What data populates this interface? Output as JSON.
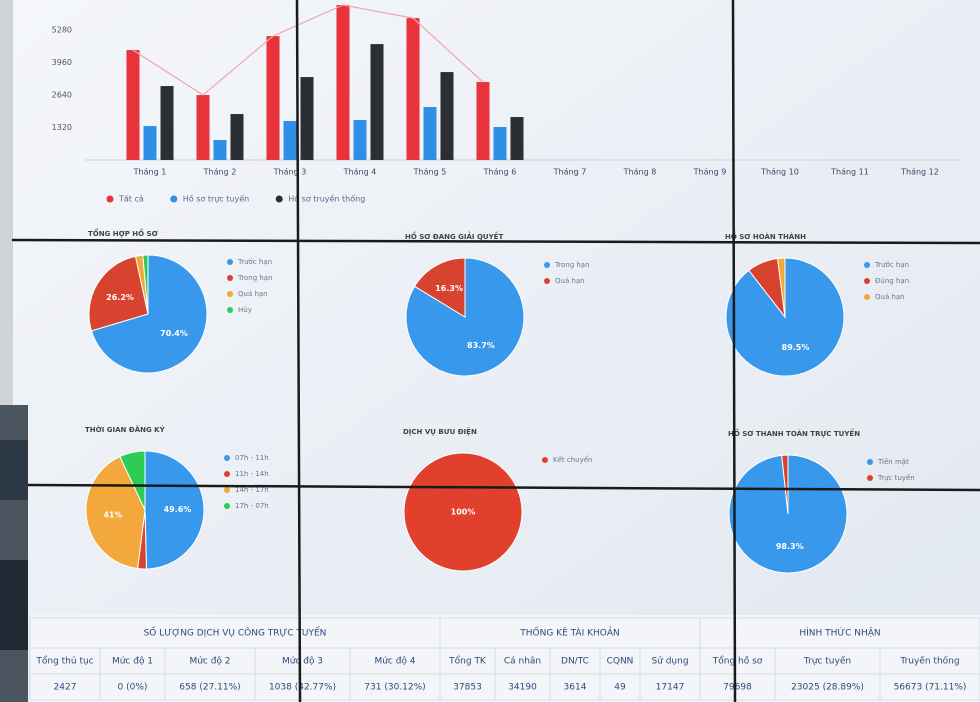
{
  "chart_data": [
    {
      "type": "bar",
      "categories": [
        "Tháng 1",
        "Tháng 2",
        "Tháng 3",
        "Tháng 4",
        "Tháng 5",
        "Tháng 6",
        "Tháng 7",
        "Tháng 8",
        "Tháng 9",
        "Tháng 10",
        "Tháng 11",
        "Tháng 12"
      ],
      "series": [
        {
          "name": "Tất cả",
          "color": "#e8323c",
          "values": [
            4468,
            2640,
            5036,
            6300,
            5767,
            3168,
            null,
            null,
            null,
            null,
            null,
            null
          ],
          "line_color": "#f3a3ad"
        },
        {
          "name": "Hồ sơ trực tuyến",
          "color": "#2f8fe6",
          "values": [
            1380,
            812,
            1584,
            1625,
            2153,
            1340,
            null,
            null,
            null,
            null,
            null,
            null
          ]
        },
        {
          "name": "Hồ sơ truyền thống",
          "color": "#2b2e35",
          "values": [
            3005,
            1868,
            3371,
            4711,
            3574,
            1746,
            null,
            null,
            null,
            null,
            null,
            null
          ]
        }
      ],
      "ylim": [
        0,
        6300
      ],
      "yticks": [
        1320,
        2640,
        3960,
        5280
      ],
      "grid": false,
      "legend": "bottom"
    },
    {
      "type": "pie",
      "title": "TỔNG HỢP HỒ SƠ",
      "categories": [
        "Trước hạn",
        "Trong hạn",
        "Quá hạn",
        "Hủy"
      ],
      "values": [
        70.4,
        26.2,
        2,
        1.4
      ],
      "value_labels": [
        "70.4%",
        "26.2%",
        null,
        null
      ],
      "colors": [
        "#3798ec",
        "#d8432f",
        "#f2a83a",
        "#2ecc55"
      ]
    },
    {
      "type": "pie",
      "title": "HỒ SƠ ĐANG GIẢI QUYẾT",
      "categories": [
        "Trong hạn",
        "Quá hạn"
      ],
      "values": [
        83.7,
        16.3
      ],
      "value_labels": [
        "83.7%",
        "16.3%"
      ],
      "colors": [
        "#3798ec",
        "#d8432f"
      ]
    },
    {
      "type": "pie",
      "title": "HỒ SƠ HOÀN THÀNH",
      "categories": [
        "Trước hạn",
        "Đúng hạn",
        "Quá hạn"
      ],
      "values": [
        89.5,
        8.5,
        2
      ],
      "value_labels": [
        "89.5%",
        null,
        null
      ],
      "colors": [
        "#3798ec",
        "#d8432f",
        "#f2a83a"
      ]
    },
    {
      "type": "pie",
      "title": "THỜI GIAN ĐĂNG KÝ",
      "categories": [
        "07h - 11h",
        "11h - 14h",
        "14h - 17h",
        "17h - 07h"
      ],
      "values": [
        49.6,
        2.4,
        41,
        7
      ],
      "value_labels": [
        "49.6%",
        null,
        "41%",
        null
      ],
      "colors": [
        "#3798ec",
        "#d8432f",
        "#f2a83a",
        "#2ecc55"
      ]
    },
    {
      "type": "pie",
      "title": "DỊCH VỤ BƯU ĐIỆN",
      "categories": [
        "Kết chuyển"
      ],
      "values": [
        100
      ],
      "value_labels": [
        "100%"
      ],
      "colors": [
        "#e0402c"
      ]
    },
    {
      "type": "pie",
      "title": "HỒ SƠ THANH TOÁN TRỰC TUYẾN",
      "categories": [
        "Tiền mặt",
        "Trực tuyến"
      ],
      "values": [
        98.3,
        1.7
      ],
      "value_labels": [
        "98.3%",
        null
      ],
      "colors": [
        "#3798ec",
        "#d8432f"
      ]
    }
  ],
  "table": {
    "groups": [
      "SỐ LƯỢNG DỊCH VỤ CÔNG TRỰC TUYẾN",
      "THỐNG KÊ TÀI KHOẢN",
      "HÌNH THỨC NHẬN"
    ],
    "columns": [
      "Tổng thủ tục",
      "Mức độ 1",
      "Mức độ 2",
      "Mức độ 3",
      "Mức độ 4",
      "Tổng TK",
      "Cá nhân",
      "DN/TC",
      "CQNN",
      "Sử dụng",
      "Tổng hồ sơ",
      "Trực tuyến",
      "Truyền thống"
    ],
    "rows": [
      [
        "2427",
        "0 (0%)",
        "658 (27.11%)",
        "1038 (42.77%)",
        "731 (30.12%)",
        "37853",
        "34190",
        "3614",
        "49",
        "17147",
        "79698",
        "23025 (28.89%)",
        "56673 (71.11%)"
      ]
    ]
  }
}
